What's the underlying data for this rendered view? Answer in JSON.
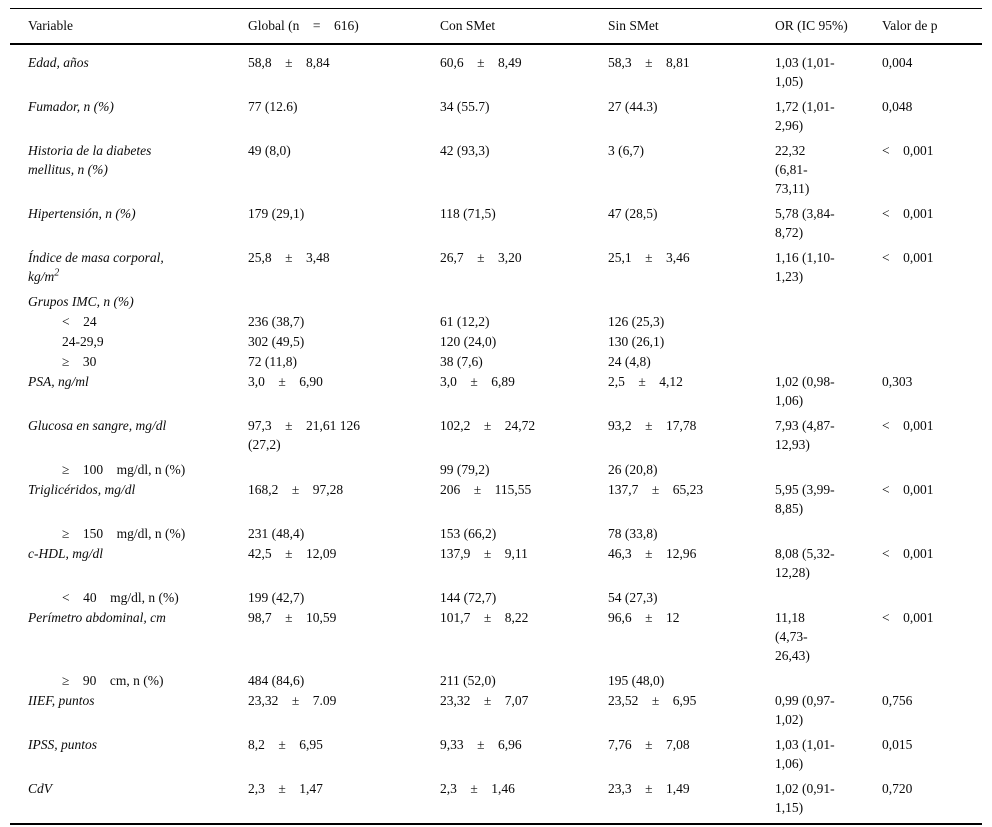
{
  "table": {
    "columns": [
      "Variable",
      "Global (n    =    616)",
      "Con SMet",
      "Sin SMet",
      "OR (IC 95%)",
      "Valor de p"
    ],
    "rows": [
      {
        "type": "main",
        "label": "Edad, años",
        "global": "58,8    ±    8,84",
        "con_smet": "60,6    ±    8,49",
        "sin_smet": "58,3    ±    8,81",
        "or_ic": "1,03 (1,01-\n1,05)",
        "p": "0,004"
      },
      {
        "type": "main",
        "label": "Fumador, n (%)",
        "global": "77 (12.6)",
        "con_smet": "34 (55.7)",
        "sin_smet": "27 (44.3)",
        "or_ic": "1,72 (1,01-\n2,96)",
        "p": "0,048"
      },
      {
        "type": "main",
        "label": "Historia de la diabetes\nmellitus, n (%)",
        "global": "49 (8,0)",
        "con_smet": "42 (93,3)",
        "sin_smet": "3 (6,7)",
        "or_ic": "22,32\n(6,81-\n73,11)",
        "p": "<    0,001"
      },
      {
        "type": "main",
        "label": "Hipertensión, n (%)",
        "global": "179 (29,1)",
        "con_smet": "118 (71,5)",
        "sin_smet": "47 (28,5)",
        "or_ic": "5,78 (3,84-\n8,72)",
        "p": "<    0,001"
      },
      {
        "type": "main",
        "label": "Índice de masa corporal,\nkg/m",
        "label_sup": "2",
        "global": "25,8    ±    3,48",
        "con_smet": "26,7    ±    3,20",
        "sin_smet": "25,1    ±    3,46",
        "or_ic": "1,16 (1,10-\n1,23)",
        "p": "<    0,001"
      },
      {
        "type": "group",
        "label": "Grupos IMC, n (%)",
        "global": "",
        "con_smet": "",
        "sin_smet": "",
        "or_ic": "",
        "p": ""
      },
      {
        "type": "sub",
        "label": "<    24",
        "global": "236 (38,7)",
        "con_smet": "61 (12,2)",
        "sin_smet": "126 (25,3)",
        "or_ic": "",
        "p": ""
      },
      {
        "type": "sub",
        "label": "24-29,9",
        "global": "302 (49,5)",
        "con_smet": "120 (24,0)",
        "sin_smet": "130 (26,1)",
        "or_ic": "",
        "p": ""
      },
      {
        "type": "sub",
        "label": "≥    30",
        "global": "72 (11,8)",
        "con_smet": "38 (7,6)",
        "sin_smet": "24 (4,8)",
        "or_ic": "",
        "p": ""
      },
      {
        "type": "main",
        "label": "PSA, ng/ml",
        "global": "3,0    ±    6,90",
        "con_smet": "3,0    ±    6,89",
        "sin_smet": "2,5    ±    4,12",
        "or_ic": "1,02 (0,98-\n1,06)",
        "p": "0,303"
      },
      {
        "type": "main",
        "label": "Glucosa en sangre, mg/dl",
        "global": "97,3    ±    21,61 126\n(27,2)",
        "con_smet": "102,2    ±    24,72",
        "sin_smet": "93,2    ±    17,78",
        "or_ic": "7,93 (4,87-\n12,93)",
        "p": "<    0,001"
      },
      {
        "type": "sub",
        "label": "≥    100    mg/dl, n (%)",
        "global": "",
        "con_smet": "99 (79,2)",
        "sin_smet": "26 (20,8)",
        "or_ic": "",
        "p": ""
      },
      {
        "type": "main",
        "label": "Triglicéridos, mg/dl",
        "global": "168,2    ±    97,28",
        "con_smet": "206    ±    115,55",
        "sin_smet": "137,7    ±    65,23",
        "or_ic": "5,95 (3,99-\n8,85)",
        "p": "<    0,001"
      },
      {
        "type": "sub",
        "label": "≥    150    mg/dl, n (%)",
        "global": "231 (48,4)",
        "con_smet": "153 (66,2)",
        "sin_smet": "78 (33,8)",
        "or_ic": "",
        "p": ""
      },
      {
        "type": "main",
        "label": "c-HDL, mg/dl",
        "global": "42,5    ±    12,09",
        "con_smet": "137,9    ±    9,11",
        "sin_smet": "46,3    ±    12,96",
        "or_ic": "8,08 (5,32-\n12,28)",
        "p": "<    0,001"
      },
      {
        "type": "sub",
        "label": "<    40    mg/dl, n (%)",
        "global": "199 (42,7)",
        "con_smet": "144 (72,7)",
        "sin_smet": "54 (27,3)",
        "or_ic": "",
        "p": ""
      },
      {
        "type": "main",
        "label": "Perímetro abdominal, cm",
        "global": "98,7    ±    10,59",
        "con_smet": "101,7    ±    8,22",
        "sin_smet": "96,6    ±    12",
        "or_ic": "11,18\n(4,73-\n26,43)",
        "p": "<    0,001"
      },
      {
        "type": "sub",
        "label": "≥    90    cm, n (%)",
        "global": "484 (84,6)",
        "con_smet": "211 (52,0)",
        "sin_smet": "195 (48,0)",
        "or_ic": "",
        "p": ""
      },
      {
        "type": "main",
        "label": "IIEF, puntos",
        "global": "23,32    ±    7.09",
        "con_smet": "23,32    ±    7,07",
        "sin_smet": "23,52    ±    6,95",
        "or_ic": "0,99 (0,97-\n1,02)",
        "p": "0,756"
      },
      {
        "type": "main",
        "label": "IPSS, puntos",
        "global": "8,2    ±    6,95",
        "con_smet": "9,33    ±    6,96",
        "sin_smet": "7,76    ±    7,08",
        "or_ic": "1,03 (1,01-\n1,06)",
        "p": "0,015"
      },
      {
        "type": "main",
        "label": "CdV",
        "global": "2,3    ±    1,47",
        "con_smet": "2,3    ±    1,46",
        "sin_smet": "23,3    ±    1,49",
        "or_ic": "1,02 (0,91-\n1,15)",
        "p": "0,720"
      }
    ]
  }
}
